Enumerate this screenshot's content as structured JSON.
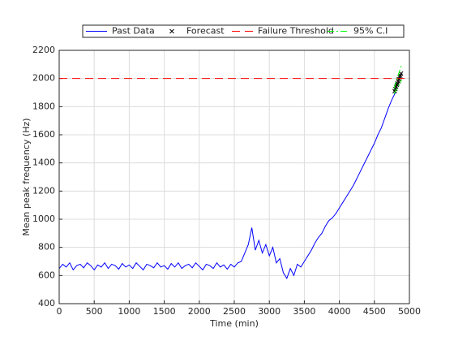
{
  "chart_data": {
    "type": "line",
    "xlabel": "Time (min)",
    "ylabel": "Mean peak frequency (Hz)",
    "xlim": [
      0,
      5000
    ],
    "xticks": [
      0,
      500,
      1000,
      1500,
      2000,
      2500,
      3000,
      3500,
      4000,
      4500,
      5000
    ],
    "ylim": [
      400,
      2200
    ],
    "yticks": [
      400,
      600,
      800,
      1000,
      1200,
      1400,
      1600,
      1800,
      2000,
      2200
    ],
    "grid": true,
    "legend": "top",
    "series": [
      {
        "name": "Past Data",
        "color": "#0000ff",
        "linestyle": "solid",
        "x": [
          0,
          50,
          100,
          150,
          200,
          250,
          300,
          350,
          400,
          450,
          500,
          550,
          600,
          650,
          700,
          750,
          800,
          850,
          900,
          950,
          1000,
          1050,
          1100,
          1150,
          1200,
          1250,
          1300,
          1350,
          1400,
          1450,
          1500,
          1550,
          1600,
          1650,
          1700,
          1750,
          1800,
          1850,
          1900,
          1950,
          2000,
          2050,
          2100,
          2150,
          2200,
          2250,
          2300,
          2350,
          2400,
          2450,
          2500,
          2550,
          2600,
          2650,
          2700,
          2750,
          2800,
          2850,
          2900,
          2950,
          3000,
          3050,
          3100,
          3150,
          3200,
          3250,
          3300,
          3350,
          3400,
          3450,
          3500,
          3550,
          3600,
          3650,
          3700,
          3750,
          3800,
          3850,
          3900,
          3950,
          4000,
          4050,
          4100,
          4150,
          4200,
          4250,
          4300,
          4350,
          4400,
          4450,
          4500,
          4550,
          4600,
          4650,
          4700,
          4750,
          4800
        ],
        "values": [
          650,
          680,
          660,
          690,
          640,
          670,
          680,
          655,
          690,
          670,
          640,
          675,
          660,
          690,
          650,
          680,
          670,
          645,
          685,
          660,
          675,
          650,
          690,
          665,
          640,
          680,
          670,
          655,
          690,
          660,
          670,
          645,
          685,
          660,
          690,
          650,
          670,
          680,
          655,
          690,
          665,
          640,
          680,
          670,
          650,
          690,
          660,
          675,
          645,
          680,
          660,
          690,
          700,
          760,
          820,
          940,
          780,
          850,
          760,
          820,
          740,
          800,
          690,
          720,
          620,
          580,
          650,
          600,
          680,
          660,
          700,
          740,
          780,
          830,
          870,
          900,
          950,
          990,
          1010,
          1040,
          1080,
          1120,
          1160,
          1200,
          1240,
          1290,
          1340,
          1390,
          1440,
          1490,
          1540,
          1600,
          1650,
          1720,
          1790,
          1850,
          1900
        ]
      },
      {
        "name": "Forecast",
        "color": "#000000",
        "marker": "x",
        "x": [
          4790,
          4800,
          4810,
          4820,
          4830,
          4840,
          4850,
          4860,
          4870,
          4880
        ],
        "values": [
          1910,
          1925,
          1940,
          1955,
          1965,
          1980,
          1995,
          2010,
          2020,
          2035
        ]
      },
      {
        "name": "Failure Threshold",
        "color": "#ff0000",
        "linestyle": "dashed",
        "x": [
          0,
          5000
        ],
        "values": [
          2000,
          2000
        ]
      },
      {
        "name": "95% C.I",
        "color": "#00ff00",
        "linestyle": "dashdot",
        "x": [
          4780,
          4890
        ],
        "upper": [
          1930,
          2100
        ],
        "lower": [
          1890,
          1990
        ]
      }
    ]
  }
}
